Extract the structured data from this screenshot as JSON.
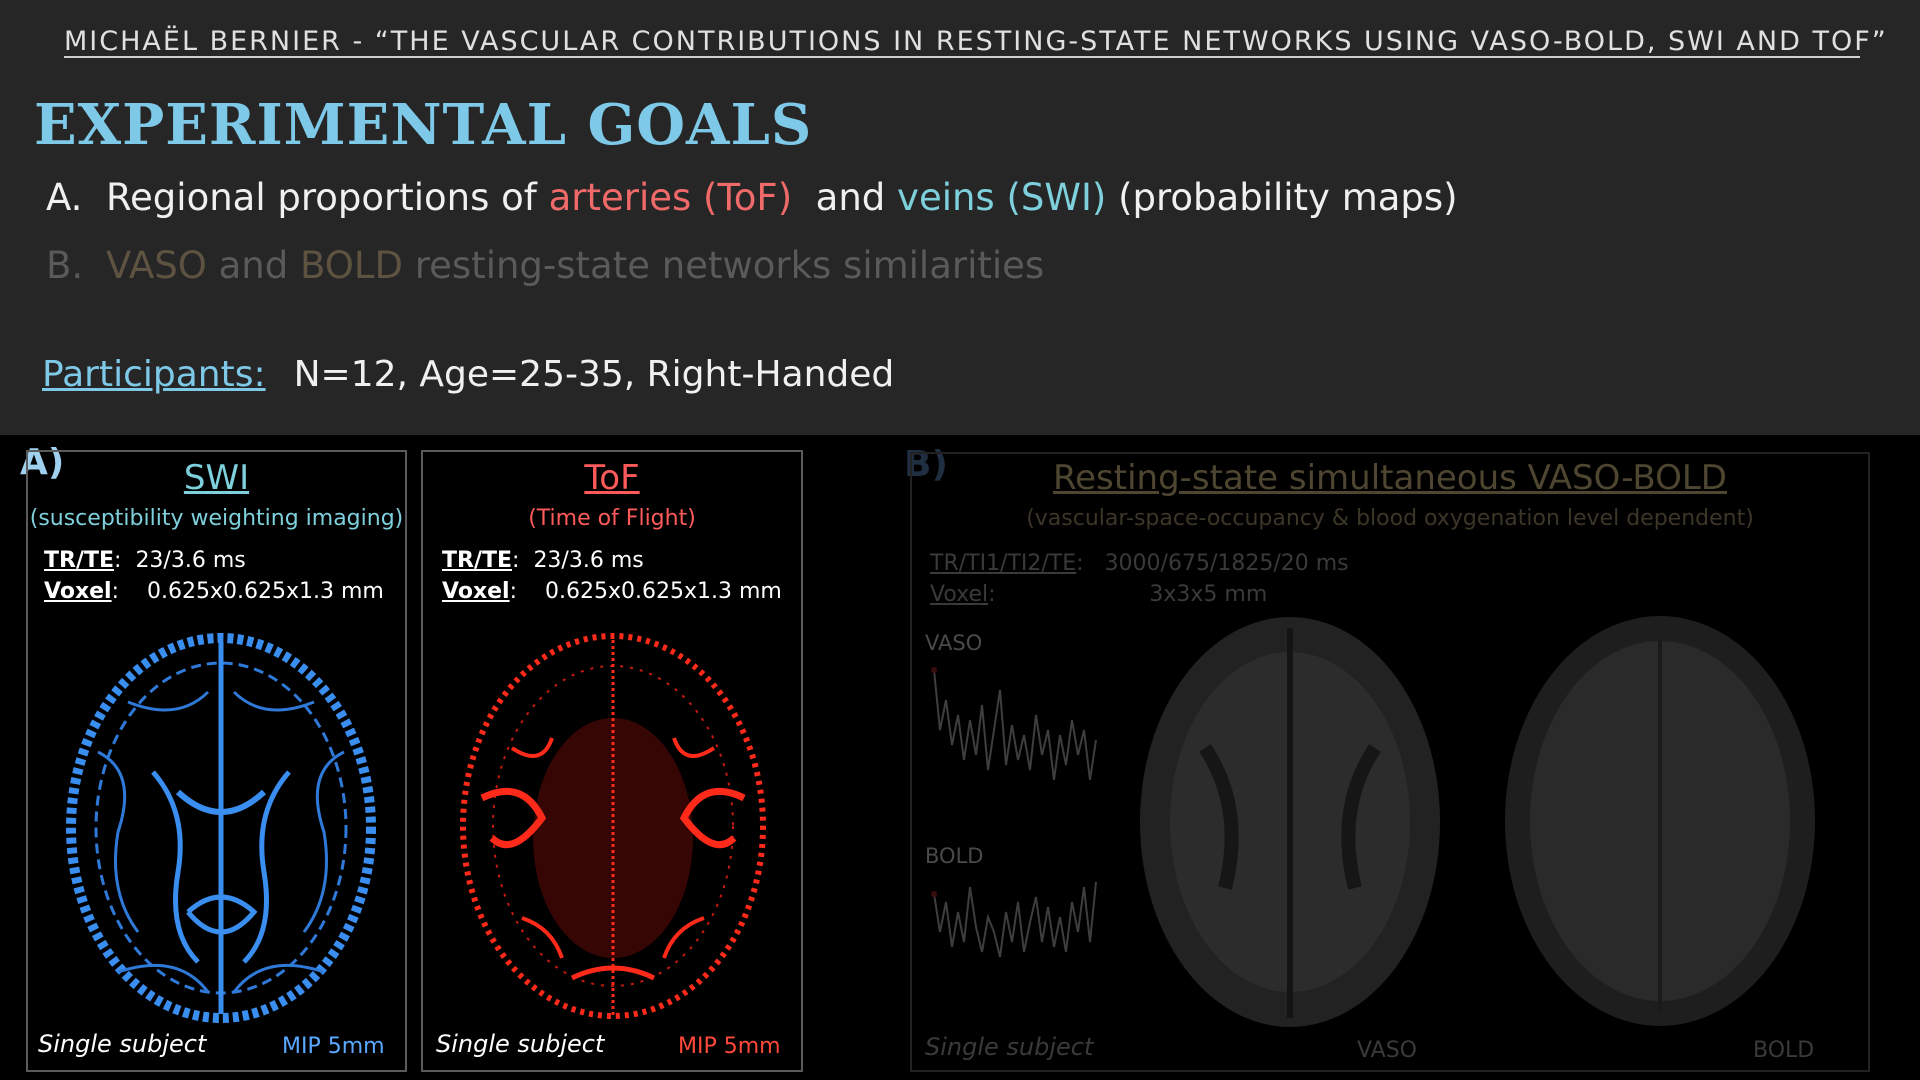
{
  "header": "MICHAËL BERNIER  -  “THE VASCULAR CONTRIBUTIONS IN RESTING-STATE NETWORKS USING VASO-BOLD, SWI AND TOF”",
  "title": "EXPERIMENTAL GOALS",
  "goals": {
    "a": {
      "idx": "A.",
      "t1": "Regional proportions of ",
      "arteries": "arteries (ToF)",
      "t2": "  and ",
      "veins": "veins (SWI)",
      "t3": " (probability maps)"
    },
    "b": {
      "idx": "B.",
      "vaso": "VASO",
      "t1": " and ",
      "bold": "BOLD",
      "t2": " resting-state networks similarities"
    }
  },
  "participants": {
    "label": "Participants:",
    "value": "N=12, Age=25-35, Right-Handed"
  },
  "panel_a": {
    "letter": "A)",
    "swi": {
      "title": "SWI",
      "subtitle": "(susceptibility weighting imaging)",
      "trte_key": "TR/TE",
      "trte_val": "23/3.6 ms",
      "voxel_key": "Voxel",
      "voxel_val": "0.625x0.625x1.3 mm",
      "footer": "Single subject",
      "mip": "MIP 5mm"
    },
    "tof": {
      "title": "ToF",
      "subtitle": "(Time of Flight)",
      "trte_key": "TR/TE",
      "trte_val": "23/3.6 ms",
      "voxel_key": "Voxel",
      "voxel_val": "0.625x0.625x1.3 mm",
      "footer": "Single subject",
      "mip": "MIP 5mm"
    }
  },
  "panel_b": {
    "letter": "B)",
    "title": "Resting-state simultaneous VASO-BOLD",
    "subtitle": "(vascular-space-occupancy & blood oxygenation level dependent)",
    "tr_key": "TR/TI1/TI2/TE",
    "tr_val": "3000/675/1825/20 ms",
    "voxel_key": "Voxel",
    "voxel_val": "3x3x5 mm",
    "vaso_signal": "VASO",
    "bold_signal": "BOLD",
    "footer": "Single subject",
    "img_vaso": "VASO",
    "img_bold": "BOLD"
  },
  "colors": {
    "title": "#7ec8e8",
    "swi": "#3a8ef0",
    "tof": "#ff2a1a",
    "dim": "#5e5340"
  }
}
